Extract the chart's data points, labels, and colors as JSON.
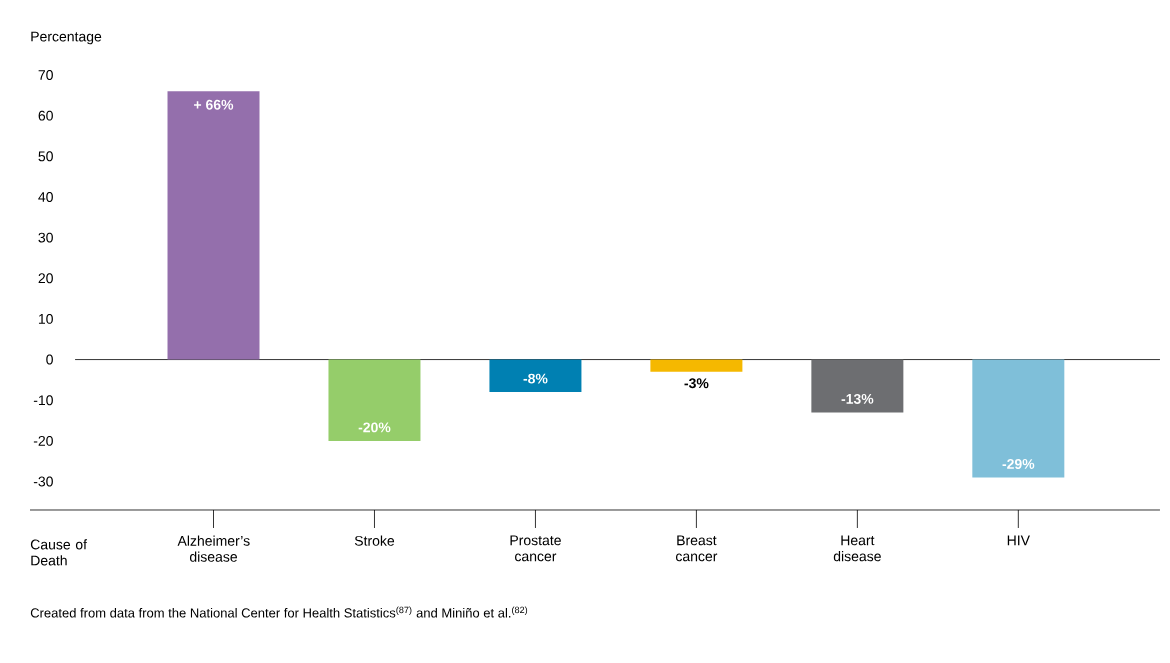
{
  "chart_data": {
    "type": "bar",
    "ylabel": "Percentage",
    "xlabel": "Cause of Death",
    "categories": [
      "Alzheimer’s disease",
      "Stroke",
      "Prostate cancer",
      "Breast cancer",
      "Heart disease",
      "HIV"
    ],
    "values": [
      66,
      -20,
      -8,
      -3,
      -13,
      -29
    ],
    "value_labels": [
      "+ 66%",
      "-20%",
      "-8%",
      "-3%",
      "-13%",
      "-29%"
    ],
    "colors": [
      "#946fac",
      "#95cd6a",
      "#0080b2",
      "#f5b800",
      "#6d6e71",
      "#7fbfd9"
    ],
    "ylim": [
      -37,
      70
    ],
    "yticks": [
      -30,
      -20,
      -10,
      0,
      10,
      20,
      30,
      40,
      50,
      60,
      70
    ],
    "ref_lines": [
      {
        "axis": "y",
        "value": 0,
        "color": "#000000"
      }
    ],
    "annotations": [
      "Created from data from the National Center for Health Statistics$^{(87)}$ and Miniño et al.$^{(82)}$"
    ]
  }
}
